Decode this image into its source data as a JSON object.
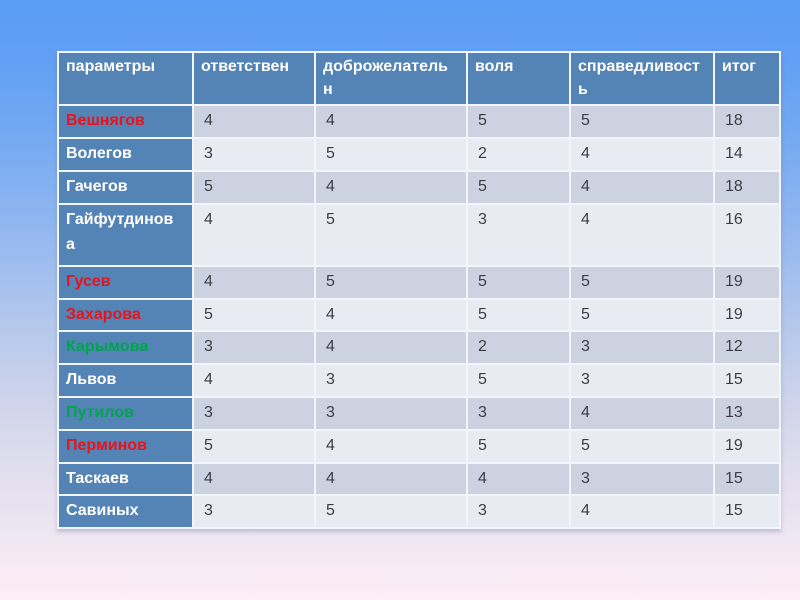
{
  "colors": {
    "bg_top": "#5b9cf4",
    "bg_bottom": "#fdedf6",
    "header_bg": "#5483b5",
    "name_col_bg": "#5483b5",
    "header_text": "#ffffff",
    "cell_border": "#f2f6fa",
    "row_dark": "#ccd2e0",
    "row_light": "#e9ebf3",
    "value_text": "#3d3d45",
    "name_red": "#e8131b",
    "name_green": "#00a44f",
    "name_white": "#ffffff"
  },
  "chart_data": {
    "type": "table",
    "columns": [
      {
        "label": "параметры"
      },
      {
        "label": "ответствен"
      },
      {
        "label": "доброжелательн"
      },
      {
        "label": "воля"
      },
      {
        "label": "справедливость"
      },
      {
        "label": "итог"
      }
    ],
    "rows": [
      {
        "name": "Вешнягов",
        "name_color": "red",
        "values": [
          4,
          4,
          5,
          5
        ],
        "total": 18
      },
      {
        "name": "Волегов",
        "name_color": "white",
        "values": [
          3,
          5,
          2,
          4
        ],
        "total": 14
      },
      {
        "name": "Гачегов",
        "name_color": "white",
        "values": [
          5,
          4,
          5,
          4
        ],
        "total": 18
      },
      {
        "name": "Гайфутдинова",
        "name_color": "white",
        "values": [
          4,
          5,
          3,
          4
        ],
        "total": 16
      },
      {
        "name": "Гусев",
        "name_color": "red",
        "values": [
          4,
          5,
          5,
          5
        ],
        "total": 19
      },
      {
        "name": "Захарова",
        "name_color": "red",
        "values": [
          5,
          4,
          5,
          5
        ],
        "total": 19
      },
      {
        "name": "Карымова",
        "name_color": "green",
        "values": [
          3,
          4,
          2,
          3
        ],
        "total": 12
      },
      {
        "name": "Львов",
        "name_color": "white",
        "values": [
          4,
          3,
          5,
          3
        ],
        "total": 15
      },
      {
        "name": "Путилов",
        "name_color": "green",
        "values": [
          3,
          3,
          3,
          4
        ],
        "total": 13
      },
      {
        "name": "Перминов",
        "name_color": "red",
        "values": [
          5,
          4,
          5,
          5
        ],
        "total": 19
      },
      {
        "name": "Таскаев",
        "name_color": "white",
        "values": [
          4,
          4,
          4,
          3
        ],
        "total": 15
      },
      {
        "name": "Савиных",
        "name_color": "white",
        "values": [
          3,
          5,
          3,
          4
        ],
        "total": 15
      }
    ]
  }
}
